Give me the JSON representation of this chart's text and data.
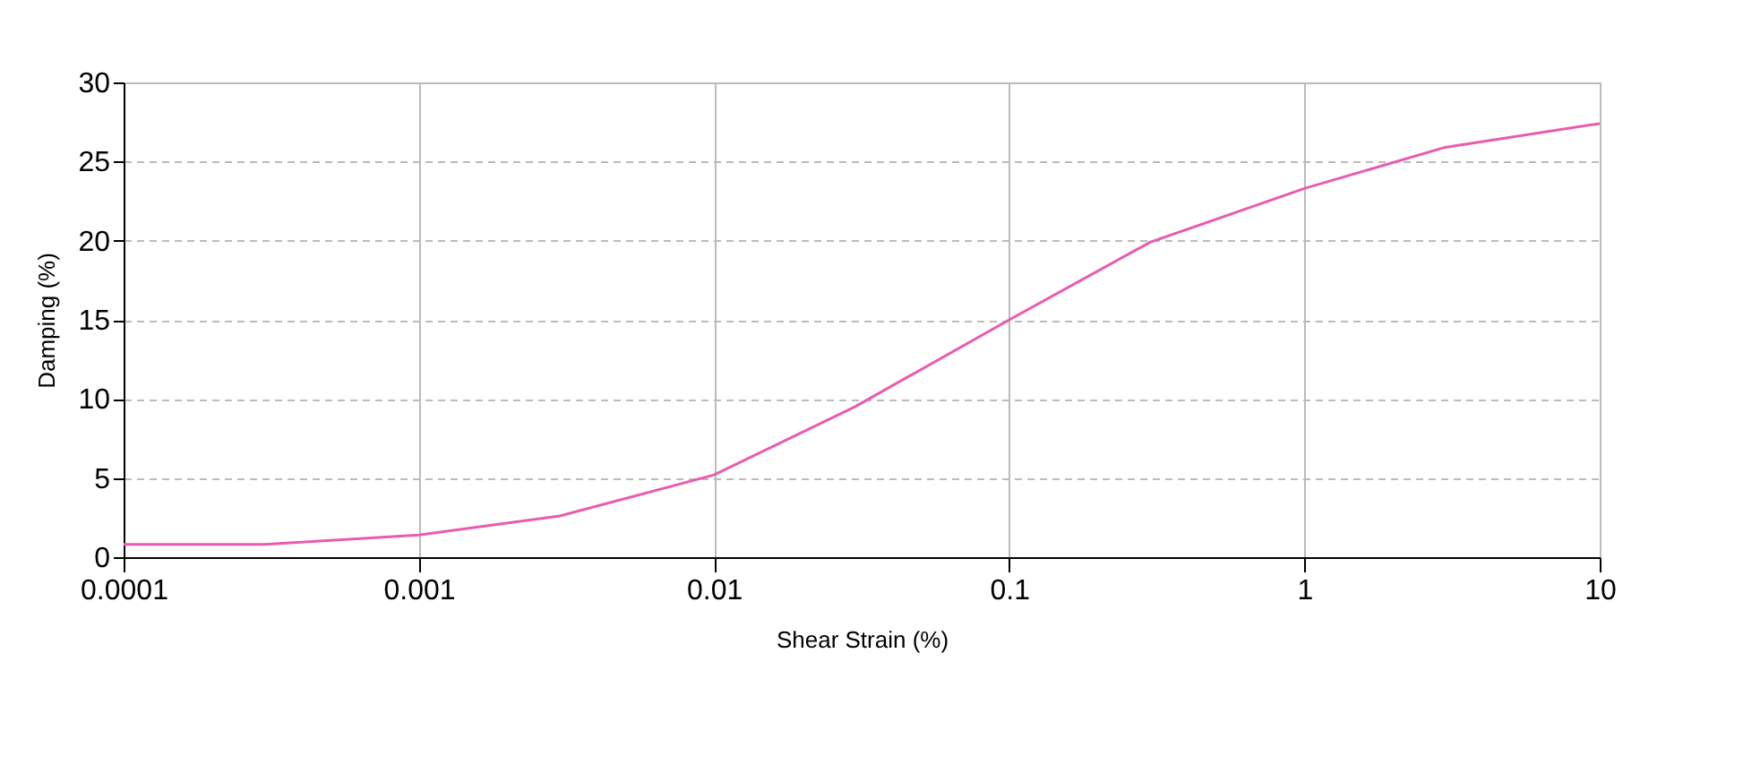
{
  "chart_data": {
    "type": "line",
    "xlabel": "Shear Strain (%)",
    "ylabel": "Damping (%)",
    "log": "x",
    "grid": true,
    "marker": "none",
    "line_style": "solid",
    "xlim": [
      0.0001,
      10
    ],
    "xticks": [
      0.0001,
      0.001,
      0.01,
      0.1,
      1,
      10
    ],
    "ylim": [
      0,
      30
    ],
    "yticks": [
      0,
      5,
      10,
      15,
      20,
      25,
      30
    ],
    "x": [
      0.0001,
      0.0003,
      0.001,
      0.003,
      0.01,
      0.03,
      0.1,
      0.3,
      1,
      3,
      10
    ],
    "series": [
      {
        "color": "#e95bb0",
        "values": [
          0.8,
          0.8,
          1.4,
          2.6,
          5.2,
          9.5,
          15,
          19.9,
          23.3,
          25.9,
          27.4
        ]
      }
    ]
  }
}
